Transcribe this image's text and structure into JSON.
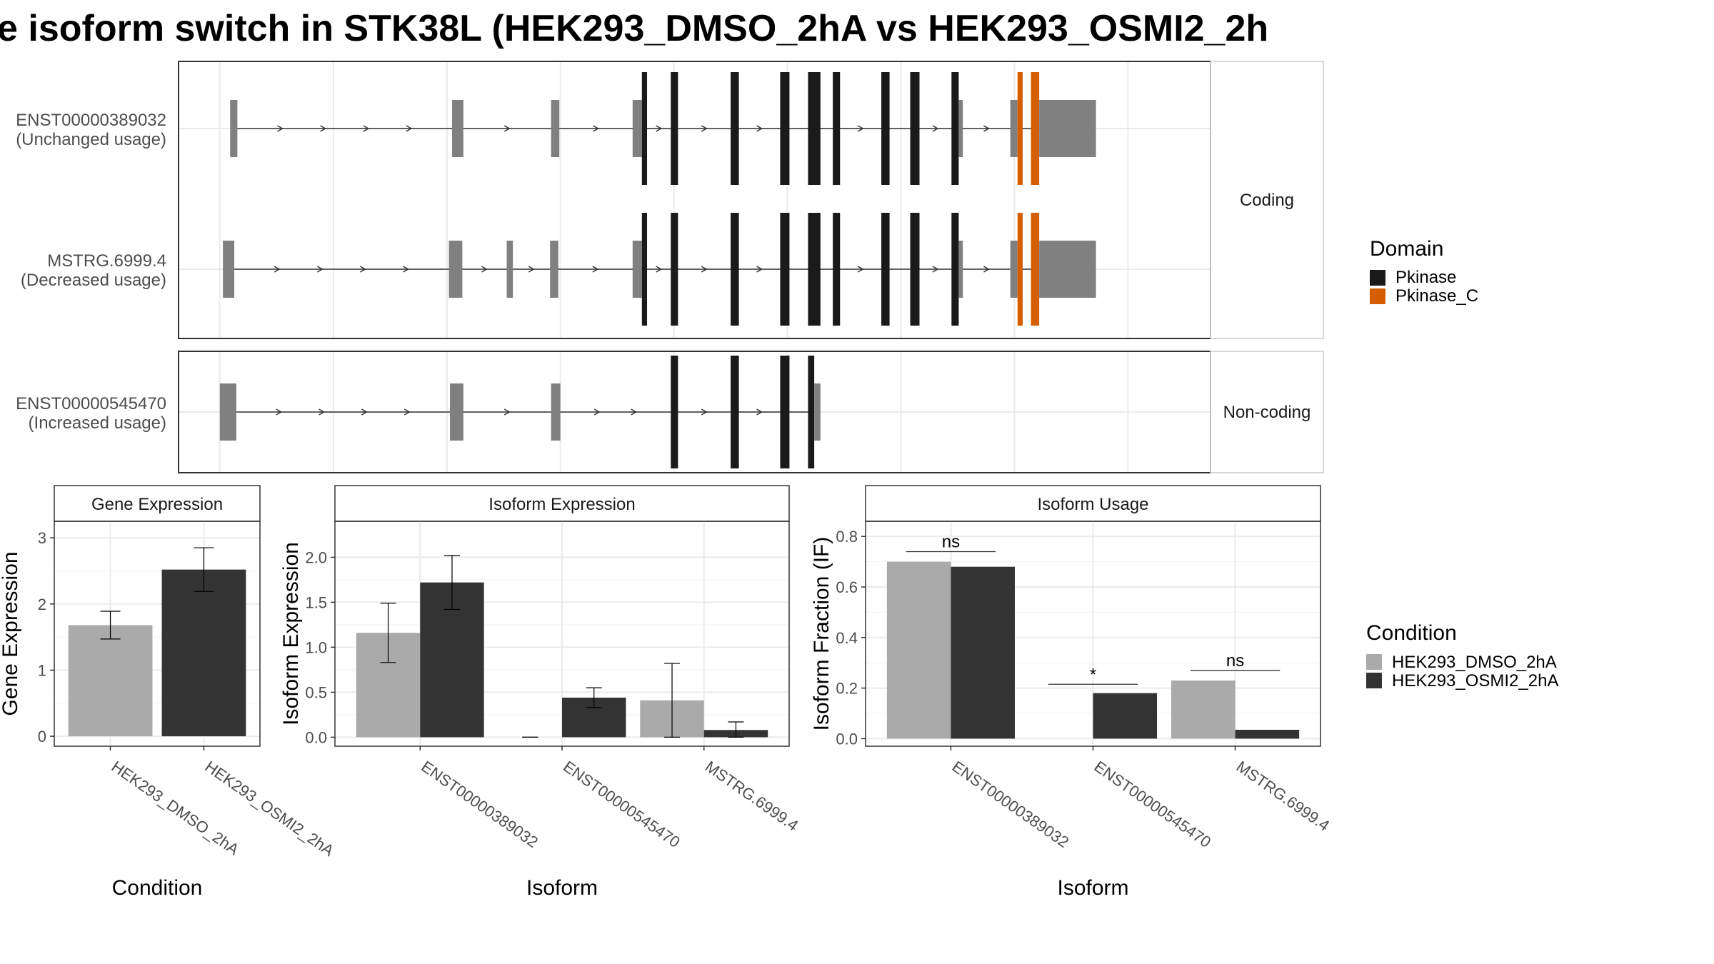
{
  "title": "e isoform switch in STK38L (HEK293_DMSO_2hA vs HEK293_OSMI2_2h",
  "colors": {
    "pkinase": "#1a1a1a",
    "pkinase_c": "#d55e00",
    "utr": "#808080",
    "dmso": "#aaaaaa",
    "osmi2": "#333333",
    "grid": "#ebebeb",
    "strip_bg": "#ffffff",
    "panel_border": "#333333"
  },
  "structure": {
    "x_breaks": [
      0.04,
      0.15,
      0.26,
      0.37,
      0.48,
      0.59,
      0.7,
      0.81,
      0.92
    ],
    "groups": [
      {
        "strip": "Coding",
        "key": "coding"
      },
      {
        "strip": "Non-coding",
        "key": "noncoding"
      }
    ],
    "transcripts": [
      {
        "group": "coding",
        "id": "ENST00000389032",
        "usage": "(Unchanged usage)",
        "exons": [
          {
            "s": 0.05,
            "e": 0.057,
            "t": "utr"
          },
          {
            "s": 0.265,
            "e": 0.276,
            "t": "utr"
          },
          {
            "s": 0.361,
            "e": 0.369,
            "t": "utr"
          },
          {
            "s": 0.44,
            "e": 0.449,
            "t": "utr"
          },
          {
            "s": 0.449,
            "e": 0.454,
            "t": "pkinase"
          },
          {
            "s": 0.477,
            "e": 0.484,
            "t": "pkinase"
          },
          {
            "s": 0.535,
            "e": 0.543,
            "t": "pkinase"
          },
          {
            "s": 0.583,
            "e": 0.592,
            "t": "pkinase"
          },
          {
            "s": 0.61,
            "e": 0.622,
            "t": "pkinase"
          },
          {
            "s": 0.634,
            "e": 0.641,
            "t": "pkinase"
          },
          {
            "s": 0.681,
            "e": 0.689,
            "t": "pkinase"
          },
          {
            "s": 0.709,
            "e": 0.718,
            "t": "pkinase"
          },
          {
            "s": 0.749,
            "e": 0.756,
            "t": "pkinase"
          },
          {
            "s": 0.756,
            "e": 0.76,
            "t": "utr"
          },
          {
            "s": 0.806,
            "e": 0.813,
            "t": "utr"
          },
          {
            "s": 0.813,
            "e": 0.818,
            "t": "pkinase_c"
          },
          {
            "s": 0.826,
            "e": 0.834,
            "t": "pkinase_c"
          },
          {
            "s": 0.834,
            "e": 0.889,
            "t": "utr"
          }
        ]
      },
      {
        "group": "coding",
        "id": "MSTRG.6999.4",
        "usage": "(Decreased usage)",
        "exons": [
          {
            "s": 0.043,
            "e": 0.054,
            "t": "utr"
          },
          {
            "s": 0.262,
            "e": 0.275,
            "t": "utr"
          },
          {
            "s": 0.318,
            "e": 0.324,
            "t": "utr"
          },
          {
            "s": 0.36,
            "e": 0.368,
            "t": "utr"
          },
          {
            "s": 0.44,
            "e": 0.449,
            "t": "utr"
          },
          {
            "s": 0.449,
            "e": 0.454,
            "t": "pkinase"
          },
          {
            "s": 0.477,
            "e": 0.484,
            "t": "pkinase"
          },
          {
            "s": 0.535,
            "e": 0.543,
            "t": "pkinase"
          },
          {
            "s": 0.583,
            "e": 0.592,
            "t": "pkinase"
          },
          {
            "s": 0.61,
            "e": 0.622,
            "t": "pkinase"
          },
          {
            "s": 0.634,
            "e": 0.641,
            "t": "pkinase"
          },
          {
            "s": 0.681,
            "e": 0.689,
            "t": "pkinase"
          },
          {
            "s": 0.709,
            "e": 0.718,
            "t": "pkinase"
          },
          {
            "s": 0.749,
            "e": 0.756,
            "t": "pkinase"
          },
          {
            "s": 0.756,
            "e": 0.76,
            "t": "utr"
          },
          {
            "s": 0.806,
            "e": 0.813,
            "t": "utr"
          },
          {
            "s": 0.813,
            "e": 0.818,
            "t": "pkinase_c"
          },
          {
            "s": 0.826,
            "e": 0.834,
            "t": "pkinase_c"
          },
          {
            "s": 0.834,
            "e": 0.889,
            "t": "utr"
          }
        ]
      },
      {
        "group": "noncoding",
        "id": "ENST00000545470",
        "usage": "(Increased usage)",
        "exons": [
          {
            "s": 0.04,
            "e": 0.056,
            "t": "utr"
          },
          {
            "s": 0.263,
            "e": 0.276,
            "t": "utr"
          },
          {
            "s": 0.361,
            "e": 0.37,
            "t": "utr"
          },
          {
            "s": 0.477,
            "e": 0.484,
            "t": "pkinase"
          },
          {
            "s": 0.535,
            "e": 0.543,
            "t": "pkinase"
          },
          {
            "s": 0.583,
            "e": 0.592,
            "t": "pkinase"
          },
          {
            "s": 0.61,
            "e": 0.616,
            "t": "pkinase"
          },
          {
            "s": 0.616,
            "e": 0.622,
            "t": "utr"
          }
        ]
      }
    ]
  },
  "domain_legend": {
    "title": "Domain",
    "items": [
      {
        "label": "Pkinase",
        "color": "#1a1a1a"
      },
      {
        "label": "Pkinase_C",
        "color": "#d55e00"
      }
    ]
  },
  "condition_legend": {
    "title": "Condition",
    "items": [
      {
        "label": "HEK293_DMSO_2hA",
        "color": "#aaaaaa"
      },
      {
        "label": "HEK293_OSMI2_2hA",
        "color": "#333333"
      }
    ]
  },
  "chart_data": [
    {
      "type": "bar",
      "strip": "Gene Expression",
      "xlabel": "Condition",
      "ylabel": "Gene Expression",
      "ylim": [
        -0.15,
        3.25
      ],
      "yticks": [
        0,
        1,
        2,
        3
      ],
      "ytick_labels": [
        "0",
        "1",
        "2",
        "3"
      ],
      "categories": [
        "HEK293_DMSO_2hA",
        "HEK293_OSMI2_2hA"
      ],
      "series": [
        {
          "values": [
            1.68,
            2.52
          ],
          "err_low": [
            1.47,
            2.19
          ],
          "err_high": [
            1.89,
            2.85
          ],
          "colors": [
            "#aaaaaa",
            "#333333"
          ]
        }
      ],
      "annotations": []
    },
    {
      "type": "bar",
      "strip": "Isoform Expression",
      "xlabel": "Isoform",
      "ylabel": "Isoform Expression",
      "ylim": [
        -0.1,
        2.4
      ],
      "yticks": [
        0.0,
        0.5,
        1.0,
        1.5,
        2.0
      ],
      "ytick_labels": [
        "0.0",
        "0.5",
        "1.0",
        "1.5",
        "2.0"
      ],
      "categories": [
        "ENST00000389032",
        "ENST00000545470",
        "MSTRG.6999.4"
      ],
      "series": [
        {
          "name": "HEK293_DMSO_2hA",
          "values": [
            1.16,
            0.0,
            0.41
          ],
          "err_low": [
            0.83,
            0.0,
            0.0
          ],
          "err_high": [
            1.49,
            0.0,
            0.82
          ]
        },
        {
          "name": "HEK293_OSMI2_2hA",
          "values": [
            1.72,
            0.44,
            0.08
          ],
          "err_low": [
            1.42,
            0.33,
            0.0
          ],
          "err_high": [
            2.02,
            0.55,
            0.17
          ]
        }
      ],
      "annotations": []
    },
    {
      "type": "bar",
      "strip": "Isoform Usage",
      "xlabel": "Isoform",
      "ylabel": "Isoform Fraction (IF)",
      "ylim": [
        -0.03,
        0.86
      ],
      "yticks": [
        0.0,
        0.2,
        0.4,
        0.6,
        0.8
      ],
      "ytick_labels": [
        "0.0",
        "0.2",
        "0.4",
        "0.6",
        "0.8"
      ],
      "categories": [
        "ENST00000389032",
        "ENST00000545470",
        "MSTRG.6999.4"
      ],
      "series": [
        {
          "name": "HEK293_DMSO_2hA",
          "values": [
            0.7,
            0.0,
            0.23
          ]
        },
        {
          "name": "HEK293_OSMI2_2hA",
          "values": [
            0.68,
            0.18,
            0.035
          ]
        }
      ],
      "annotations": [
        {
          "category": 0,
          "text": "ns",
          "y": 0.74
        },
        {
          "category": 1,
          "text": "*",
          "y": 0.215
        },
        {
          "category": 2,
          "text": "ns",
          "y": 0.27
        }
      ]
    }
  ]
}
